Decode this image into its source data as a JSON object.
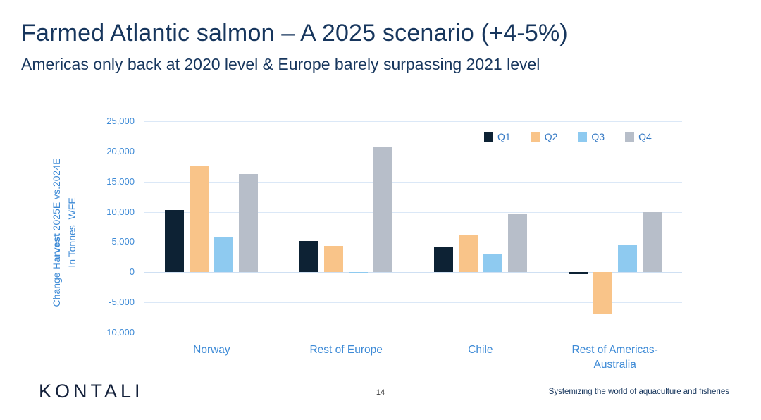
{
  "header": {
    "title": "Farmed Atlantic salmon – A 2025 scenario (+4-5%)",
    "subtitle": "Americas only back at 2020 level & Europe barely surpassing 2021 level"
  },
  "chart_data": {
    "type": "bar",
    "title": "",
    "xlabel": "",
    "ylabel": {
      "line1_prefix": "Change ",
      "line1_emph": "Harvest",
      "line1_suffix": " 2025E vs.2024E",
      "line2": "In Tonnes  WFE"
    },
    "categories": [
      "Norway",
      "Rest of Europe",
      "Chile",
      "Rest of Americas-Australia"
    ],
    "category_label_lines": [
      [
        "Norway"
      ],
      [
        "Rest of Europe"
      ],
      [
        "Chile"
      ],
      [
        "Rest of Americas-",
        "Australia"
      ]
    ],
    "series": [
      {
        "name": "Q1",
        "color": "#0d2234",
        "values": [
          10300,
          5200,
          4100,
          -300
        ]
      },
      {
        "name": "Q2",
        "color": "#f9c489",
        "values": [
          17500,
          4400,
          6100,
          -6800
        ]
      },
      {
        "name": "Q3",
        "color": "#8ecaf0",
        "values": [
          5900,
          -100,
          3000,
          4600
        ]
      },
      {
        "name": "Q4",
        "color": "#b7bec9",
        "values": [
          16200,
          20700,
          9600,
          9900
        ]
      }
    ],
    "ylim": [
      -10000,
      25000
    ],
    "ytick_values": [
      25000,
      20000,
      15000,
      10000,
      5000,
      0,
      -5000,
      -10000
    ],
    "ytick_labels": [
      "25,000",
      "20,000",
      "15,000",
      "10,000",
      "5,000",
      "0",
      "-5,000",
      "-10,000"
    ],
    "grid": true,
    "legend_position": "top-right",
    "legend": [
      "Q1",
      "Q2",
      "Q3",
      "Q4"
    ]
  },
  "footer": {
    "logo": "KONTALI",
    "page_number": "14",
    "tagline": "Systemizing the world of aquaculture and fisheries"
  },
  "colors": {
    "title_navy": "#17365d",
    "axis_blue": "#3d8ad6",
    "gridline": "#dbe8f7"
  }
}
